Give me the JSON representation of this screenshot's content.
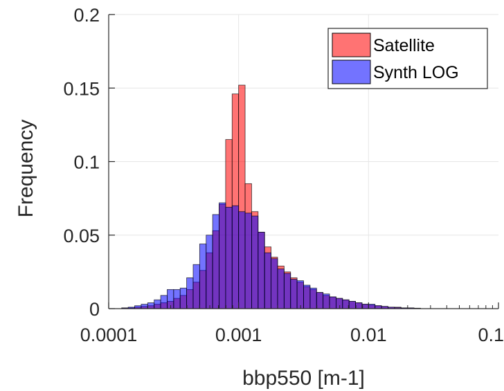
{
  "chart_data": {
    "type": "bar",
    "xlabel": "bbp550 [m-1]",
    "ylabel": "Frequency",
    "x_scale": "log",
    "xlim": [
      0.0001,
      0.1
    ],
    "ylim": [
      0,
      0.2
    ],
    "grid": true,
    "legend_position": "top-right",
    "x_ticks": [
      {
        "value": 0.0001,
        "label": "0.0001"
      },
      {
        "value": 0.001,
        "label": "0.001"
      },
      {
        "value": 0.01,
        "label": "0.01"
      },
      {
        "value": 0.1,
        "label": "0.1"
      }
    ],
    "y_ticks": [
      {
        "value": 0,
        "label": "0"
      },
      {
        "value": 0.05,
        "label": "0.05"
      },
      {
        "value": 0.1,
        "label": "0.1"
      },
      {
        "value": 0.15,
        "label": "0.15"
      },
      {
        "value": 0.2,
        "label": "0.2"
      }
    ],
    "bin_edges_log10": [
      -3.9,
      -3.85,
      -3.8,
      -3.75,
      -3.7,
      -3.65,
      -3.6,
      -3.55,
      -3.5,
      -3.45,
      -3.4,
      -3.35,
      -3.3,
      -3.25,
      -3.2,
      -3.15,
      -3.1,
      -3.05,
      -3.0,
      -2.95,
      -2.9,
      -2.85,
      -2.8,
      -2.75,
      -2.7,
      -2.65,
      -2.6,
      -2.55,
      -2.5,
      -2.45,
      -2.4,
      -2.35,
      -2.3,
      -2.25,
      -2.2,
      -2.15,
      -2.1,
      -2.05,
      -2.0,
      -1.95,
      -1.9,
      -1.85,
      -1.8,
      -1.75,
      -1.7,
      -1.65,
      -1.6
    ],
    "series": [
      {
        "name": "Satellite",
        "color": "#ff0000",
        "values": [
          0.0005,
          0.0005,
          0.001,
          0.0015,
          0.002,
          0.003,
          0.004,
          0.005,
          0.007,
          0.009,
          0.013,
          0.018,
          0.026,
          0.038,
          0.053,
          0.071,
          0.115,
          0.146,
          0.152,
          0.085,
          0.066,
          0.052,
          0.042,
          0.035,
          0.029,
          0.025,
          0.021,
          0.018,
          0.015,
          0.013,
          0.011,
          0.009,
          0.008,
          0.007,
          0.006,
          0.005,
          0.004,
          0.003,
          0.0025,
          0.002,
          0.0015,
          0.001,
          0.001,
          0.0005,
          0.0005,
          0.0003
        ]
      },
      {
        "name": "Synth LOG",
        "color": "#0000ff",
        "values": [
          0.0005,
          0.001,
          0.002,
          0.003,
          0.004,
          0.006,
          0.009,
          0.013,
          0.013,
          0.014,
          0.021,
          0.03,
          0.044,
          0.05,
          0.064,
          0.072,
          0.069,
          0.07,
          0.066,
          0.065,
          0.063,
          0.052,
          0.038,
          0.034,
          0.027,
          0.024,
          0.02,
          0.019,
          0.016,
          0.014,
          0.011,
          0.01,
          0.008,
          0.007,
          0.006,
          0.005,
          0.004,
          0.003,
          0.003,
          0.002,
          0.0015,
          0.001,
          0.0008,
          0.0005,
          0.0005,
          0.0003
        ]
      }
    ]
  }
}
